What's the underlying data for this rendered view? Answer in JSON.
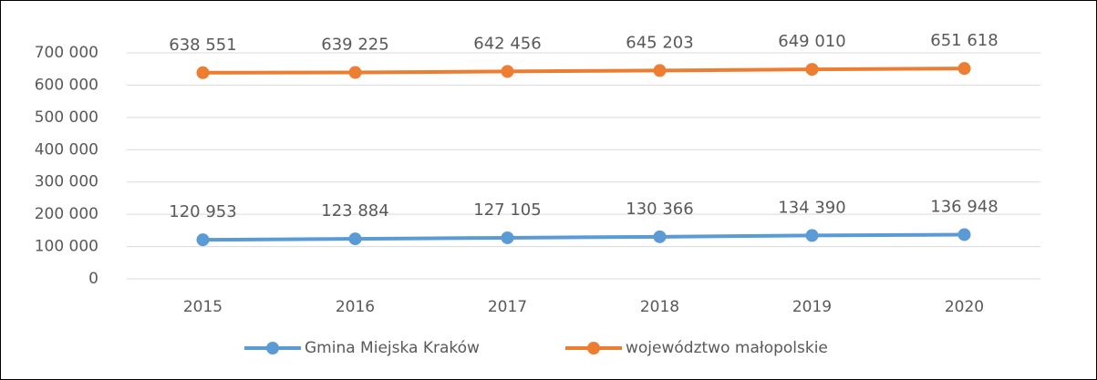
{
  "chart_data": {
    "type": "line",
    "categories": [
      "2015",
      "2016",
      "2017",
      "2018",
      "2019",
      "2020"
    ],
    "series": [
      {
        "name": "Gmina Miejska Kraków",
        "color": "#5b9bd5",
        "values": [
          120953,
          123884,
          127105,
          130366,
          134390,
          136948
        ],
        "value_labels": [
          "120 953",
          "123 884",
          "127 105",
          "130 366",
          "134 390",
          "136 948"
        ]
      },
      {
        "name": "województwo małopolskie",
        "color": "#ed7d31",
        "values": [
          638551,
          639225,
          642456,
          645203,
          649010,
          651618
        ],
        "value_labels": [
          "638 551",
          "639 225",
          "642 456",
          "645 203",
          "649 010",
          "651 618"
        ]
      }
    ],
    "ylim": [
      0,
      700000
    ],
    "yticks": [
      0,
      {
        "value": 100000,
        "label": "100 000"
      },
      {
        "value": 200000,
        "label": "200 000"
      },
      {
        "value": 300000,
        "label": "300 000"
      },
      {
        "value": 400000,
        "label": "400 000"
      },
      {
        "value": 500000,
        "label": "500 000"
      },
      {
        "value": 600000,
        "label": "600 000"
      },
      {
        "value": 700000,
        "label": "700 000"
      }
    ],
    "grid": true,
    "legend": "bottom"
  }
}
